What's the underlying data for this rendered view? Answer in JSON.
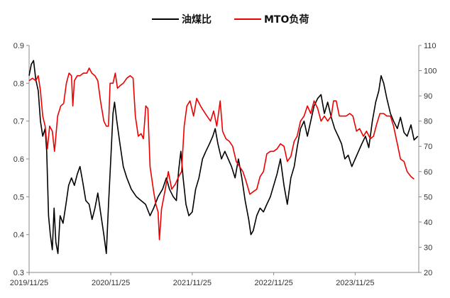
{
  "chart_data": {
    "type": "line",
    "legend": {
      "placement": "top-center"
    },
    "grid": false,
    "x_ticks": [
      "2019/11/25",
      "2020/11/25",
      "2021/11/25",
      "2022/11/25",
      "2023/11/25"
    ],
    "x_range": [
      "2019-11-25",
      "2024-09-05"
    ],
    "y_left": {
      "range": [
        0.3,
        0.9
      ],
      "ticks": [
        "0.3",
        "0.4",
        "0.5",
        "0.6",
        "0.7",
        "0.8",
        "0.9"
      ]
    },
    "y_right": {
      "range": [
        20,
        110
      ],
      "ticks": [
        "20",
        "30",
        "40",
        "50",
        "60",
        "70",
        "80",
        "90",
        "100",
        "110"
      ]
    },
    "series": [
      {
        "name": "油煤比",
        "axis": "left",
        "color": "#000000",
        "points": [
          [
            "2019-11-25",
            0.82
          ],
          [
            "2019-12-05",
            0.85
          ],
          [
            "2019-12-15",
            0.86
          ],
          [
            "2019-12-25",
            0.81
          ],
          [
            "2020-01-05",
            0.78
          ],
          [
            "2020-01-15",
            0.7
          ],
          [
            "2020-01-25",
            0.66
          ],
          [
            "2020-02-05",
            0.68
          ],
          [
            "2020-02-12",
            0.62
          ],
          [
            "2020-02-20",
            0.45
          ],
          [
            "2020-02-28",
            0.4
          ],
          [
            "2020-03-08",
            0.36
          ],
          [
            "2020-03-16",
            0.47
          ],
          [
            "2020-03-24",
            0.38
          ],
          [
            "2020-04-02",
            0.35
          ],
          [
            "2020-04-12",
            0.45
          ],
          [
            "2020-04-25",
            0.43
          ],
          [
            "2020-05-08",
            0.48
          ],
          [
            "2020-05-20",
            0.53
          ],
          [
            "2020-06-02",
            0.55
          ],
          [
            "2020-06-15",
            0.53
          ],
          [
            "2020-06-28",
            0.56
          ],
          [
            "2020-07-10",
            0.58
          ],
          [
            "2020-07-22",
            0.54
          ],
          [
            "2020-08-05",
            0.49
          ],
          [
            "2020-08-20",
            0.48
          ],
          [
            "2020-09-02",
            0.44
          ],
          [
            "2020-09-15",
            0.47
          ],
          [
            "2020-09-28",
            0.51
          ],
          [
            "2020-10-10",
            0.46
          ],
          [
            "2020-10-25",
            0.4
          ],
          [
            "2020-11-05",
            0.35
          ],
          [
            "2020-11-15",
            0.48
          ],
          [
            "2020-11-25",
            0.6
          ],
          [
            "2020-12-05",
            0.72
          ],
          [
            "2020-12-12",
            0.75
          ],
          [
            "2020-12-22",
            0.7
          ],
          [
            "2021-01-05",
            0.64
          ],
          [
            "2021-01-20",
            0.58
          ],
          [
            "2021-02-05",
            0.55
          ],
          [
            "2021-02-25",
            0.52
          ],
          [
            "2021-03-20",
            0.5
          ],
          [
            "2021-04-10",
            0.49
          ],
          [
            "2021-04-30",
            0.48
          ],
          [
            "2021-05-20",
            0.45
          ],
          [
            "2021-06-05",
            0.47
          ],
          [
            "2021-06-25",
            0.5
          ],
          [
            "2021-07-15",
            0.52
          ],
          [
            "2021-08-01",
            0.55
          ],
          [
            "2021-08-15",
            0.52
          ],
          [
            "2021-09-01",
            0.5
          ],
          [
            "2021-09-15",
            0.49
          ],
          [
            "2021-09-25",
            0.57
          ],
          [
            "2021-10-05",
            0.62
          ],
          [
            "2021-10-15",
            0.55
          ],
          [
            "2021-10-28",
            0.48
          ],
          [
            "2021-11-10",
            0.45
          ],
          [
            "2021-11-25",
            0.46
          ],
          [
            "2021-12-10",
            0.52
          ],
          [
            "2021-12-25",
            0.55
          ],
          [
            "2022-01-10",
            0.6
          ],
          [
            "2022-01-25",
            0.62
          ],
          [
            "2022-02-10",
            0.64
          ],
          [
            "2022-02-25",
            0.66
          ],
          [
            "2022-03-08",
            0.68
          ],
          [
            "2022-03-20",
            0.64
          ],
          [
            "2022-04-05",
            0.6
          ],
          [
            "2022-04-20",
            0.62
          ],
          [
            "2022-05-05",
            0.6
          ],
          [
            "2022-05-20",
            0.58
          ],
          [
            "2022-06-05",
            0.55
          ],
          [
            "2022-06-20",
            0.6
          ],
          [
            "2022-07-05",
            0.55
          ],
          [
            "2022-07-20",
            0.49
          ],
          [
            "2022-08-05",
            0.44
          ],
          [
            "2022-08-15",
            0.4
          ],
          [
            "2022-08-25",
            0.41
          ],
          [
            "2022-09-10",
            0.45
          ],
          [
            "2022-09-25",
            0.47
          ],
          [
            "2022-10-10",
            0.46
          ],
          [
            "2022-10-25",
            0.48
          ],
          [
            "2022-11-10",
            0.5
          ],
          [
            "2022-11-25",
            0.53
          ],
          [
            "2022-12-10",
            0.56
          ],
          [
            "2022-12-25",
            0.6
          ],
          [
            "2023-01-10",
            0.53
          ],
          [
            "2023-01-25",
            0.48
          ],
          [
            "2023-02-10",
            0.55
          ],
          [
            "2023-02-25",
            0.58
          ],
          [
            "2023-03-10",
            0.63
          ],
          [
            "2023-03-25",
            0.68
          ],
          [
            "2023-04-10",
            0.7
          ],
          [
            "2023-04-25",
            0.66
          ],
          [
            "2023-05-10",
            0.7
          ],
          [
            "2023-05-25",
            0.74
          ],
          [
            "2023-06-10",
            0.76
          ],
          [
            "2023-06-25",
            0.77
          ],
          [
            "2023-07-10",
            0.72
          ],
          [
            "2023-07-25",
            0.75
          ],
          [
            "2023-08-10",
            0.71
          ],
          [
            "2023-08-25",
            0.68
          ],
          [
            "2023-09-10",
            0.66
          ],
          [
            "2023-09-25",
            0.64
          ],
          [
            "2023-10-10",
            0.6
          ],
          [
            "2023-10-25",
            0.61
          ],
          [
            "2023-11-10",
            0.58
          ],
          [
            "2023-11-25",
            0.6
          ],
          [
            "2023-12-10",
            0.62
          ],
          [
            "2023-12-25",
            0.64
          ],
          [
            "2024-01-10",
            0.66
          ],
          [
            "2024-01-25",
            0.63
          ],
          [
            "2024-02-10",
            0.7
          ],
          [
            "2024-02-25",
            0.75
          ],
          [
            "2024-03-10",
            0.78
          ],
          [
            "2024-03-20",
            0.82
          ],
          [
            "2024-04-01",
            0.8
          ],
          [
            "2024-04-15",
            0.76
          ],
          [
            "2024-05-01",
            0.72
          ],
          [
            "2024-05-15",
            0.7
          ],
          [
            "2024-06-01",
            0.68
          ],
          [
            "2024-06-15",
            0.71
          ],
          [
            "2024-07-01",
            0.67
          ],
          [
            "2024-07-15",
            0.66
          ],
          [
            "2024-08-01",
            0.69
          ],
          [
            "2024-08-15",
            0.65
          ],
          [
            "2024-09-01",
            0.66
          ]
        ]
      },
      {
        "name": "MTO负荷",
        "axis": "right",
        "color": "#ee0000",
        "points": [
          [
            "2019-11-25",
            96
          ],
          [
            "2019-12-10",
            97
          ],
          [
            "2019-12-25",
            96
          ],
          [
            "2020-01-05",
            98
          ],
          [
            "2020-01-15",
            92
          ],
          [
            "2020-01-25",
            82
          ],
          [
            "2020-02-05",
            78
          ],
          [
            "2020-02-15",
            69
          ],
          [
            "2020-02-25",
            78
          ],
          [
            "2020-03-08",
            76
          ],
          [
            "2020-03-18",
            68
          ],
          [
            "2020-04-01",
            82
          ],
          [
            "2020-04-15",
            86
          ],
          [
            "2020-04-28",
            87
          ],
          [
            "2020-05-10",
            95
          ],
          [
            "2020-05-22",
            99
          ],
          [
            "2020-06-02",
            98
          ],
          [
            "2020-06-08",
            86
          ],
          [
            "2020-06-15",
            96
          ],
          [
            "2020-06-28",
            98
          ],
          [
            "2020-07-10",
            98
          ],
          [
            "2020-07-25",
            99
          ],
          [
            "2020-08-10",
            99
          ],
          [
            "2020-08-20",
            101
          ],
          [
            "2020-09-01",
            99
          ],
          [
            "2020-09-15",
            98
          ],
          [
            "2020-09-28",
            96
          ],
          [
            "2020-10-10",
            88
          ],
          [
            "2020-10-25",
            80
          ],
          [
            "2020-11-05",
            78
          ],
          [
            "2020-11-15",
            78
          ],
          [
            "2020-11-22",
            95
          ],
          [
            "2020-12-05",
            95
          ],
          [
            "2020-12-15",
            99
          ],
          [
            "2020-12-25",
            93
          ],
          [
            "2021-01-05",
            94
          ],
          [
            "2021-01-20",
            95
          ],
          [
            "2021-02-05",
            97
          ],
          [
            "2021-02-20",
            98
          ],
          [
            "2021-03-05",
            97
          ],
          [
            "2021-03-15",
            82
          ],
          [
            "2021-03-28",
            74
          ],
          [
            "2021-04-10",
            75
          ],
          [
            "2021-04-20",
            73
          ],
          [
            "2021-05-01",
            86
          ],
          [
            "2021-05-10",
            85
          ],
          [
            "2021-05-20",
            62
          ],
          [
            "2021-06-05",
            52
          ],
          [
            "2021-06-15",
            47
          ],
          [
            "2021-06-25",
            44
          ],
          [
            "2021-07-01",
            33
          ],
          [
            "2021-07-10",
            45
          ],
          [
            "2021-07-25",
            52
          ],
          [
            "2021-08-10",
            60
          ],
          [
            "2021-08-25",
            53
          ],
          [
            "2021-09-10",
            55
          ],
          [
            "2021-09-25",
            58
          ],
          [
            "2021-10-08",
            60
          ],
          [
            "2021-10-20",
            78
          ],
          [
            "2021-11-01",
            86
          ],
          [
            "2021-11-15",
            88
          ],
          [
            "2021-12-01",
            82
          ],
          [
            "2021-12-15",
            89
          ],
          [
            "2022-01-01",
            86
          ],
          [
            "2022-01-15",
            84
          ],
          [
            "2022-01-30",
            82
          ],
          [
            "2022-02-15",
            80
          ],
          [
            "2022-03-01",
            84
          ],
          [
            "2022-03-15",
            78
          ],
          [
            "2022-03-30",
            88
          ],
          [
            "2022-04-10",
            76
          ],
          [
            "2022-04-25",
            73
          ],
          [
            "2022-05-10",
            72
          ],
          [
            "2022-05-25",
            70
          ],
          [
            "2022-06-10",
            64
          ],
          [
            "2022-06-25",
            62
          ],
          [
            "2022-07-10",
            60
          ],
          [
            "2022-07-25",
            56
          ],
          [
            "2022-08-10",
            51
          ],
          [
            "2022-08-25",
            52
          ],
          [
            "2022-09-10",
            53
          ],
          [
            "2022-09-25",
            58
          ],
          [
            "2022-10-10",
            60
          ],
          [
            "2022-10-25",
            67
          ],
          [
            "2022-11-10",
            68
          ],
          [
            "2022-11-25",
            68
          ],
          [
            "2022-12-10",
            69
          ],
          [
            "2022-12-25",
            71
          ],
          [
            "2023-01-10",
            70
          ],
          [
            "2023-01-25",
            64
          ],
          [
            "2023-02-10",
            66
          ],
          [
            "2023-02-25",
            72
          ],
          [
            "2023-03-10",
            74
          ],
          [
            "2023-03-25",
            80
          ],
          [
            "2023-04-10",
            82
          ],
          [
            "2023-04-25",
            86
          ],
          [
            "2023-05-10",
            83
          ],
          [
            "2023-05-25",
            88
          ],
          [
            "2023-06-10",
            85
          ],
          [
            "2023-06-25",
            80
          ],
          [
            "2023-07-10",
            82
          ],
          [
            "2023-07-25",
            80
          ],
          [
            "2023-08-10",
            82
          ],
          [
            "2023-08-20",
            88
          ],
          [
            "2023-09-01",
            88
          ],
          [
            "2023-09-15",
            82
          ],
          [
            "2023-10-01",
            82
          ],
          [
            "2023-10-15",
            82
          ],
          [
            "2023-11-01",
            83
          ],
          [
            "2023-11-15",
            82
          ],
          [
            "2023-12-01",
            76
          ],
          [
            "2023-12-15",
            77
          ],
          [
            "2024-01-01",
            74
          ],
          [
            "2024-01-15",
            76
          ],
          [
            "2024-02-01",
            73
          ],
          [
            "2024-02-15",
            74
          ],
          [
            "2024-03-01",
            79
          ],
          [
            "2024-03-15",
            83
          ],
          [
            "2024-04-01",
            83
          ],
          [
            "2024-04-15",
            82
          ],
          [
            "2024-05-01",
            82
          ],
          [
            "2024-05-15",
            78
          ],
          [
            "2024-06-01",
            71
          ],
          [
            "2024-06-15",
            65
          ],
          [
            "2024-07-01",
            64
          ],
          [
            "2024-07-15",
            60
          ],
          [
            "2024-08-01",
            58
          ],
          [
            "2024-08-15",
            57
          ]
        ]
      }
    ]
  }
}
